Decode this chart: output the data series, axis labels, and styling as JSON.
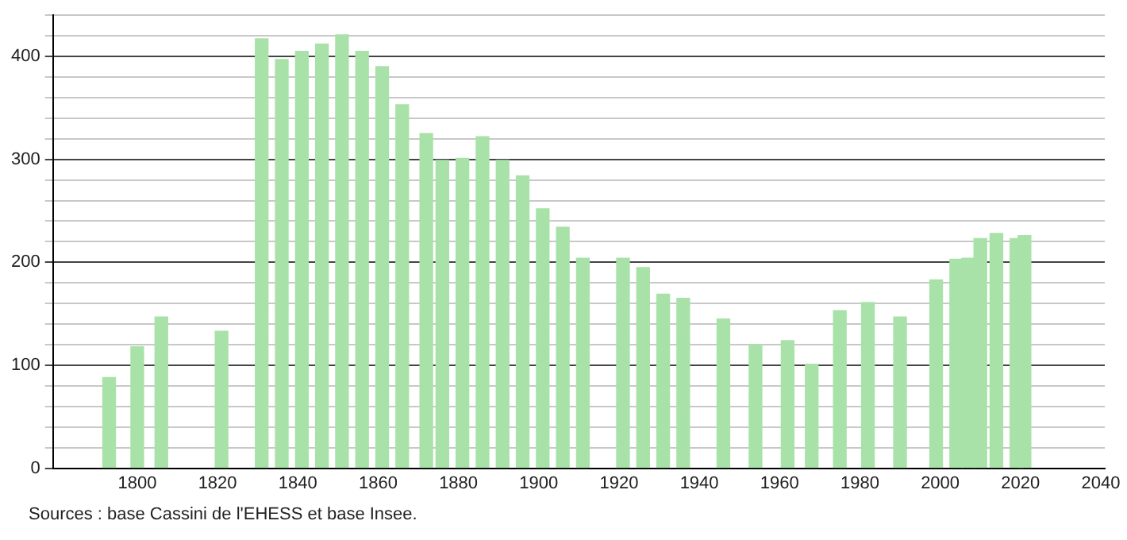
{
  "chart_data": {
    "type": "bar",
    "x": [
      1793,
      1800,
      1806,
      1821,
      1831,
      1836,
      1841,
      1846,
      1851,
      1856,
      1861,
      1866,
      1872,
      1876,
      1881,
      1886,
      1891,
      1896,
      1901,
      1906,
      1911,
      1921,
      1926,
      1931,
      1936,
      1946,
      1954,
      1962,
      1968,
      1975,
      1982,
      1990,
      1999,
      2004,
      2007,
      2010,
      2014,
      2019,
      2021
    ],
    "values": [
      88,
      118,
      147,
      133,
      417,
      397,
      405,
      412,
      421,
      405,
      390,
      353,
      325,
      299,
      301,
      322,
      299,
      284,
      252,
      234,
      204,
      204,
      195,
      169,
      165,
      145,
      120,
      124,
      101,
      153,
      161,
      147,
      183,
      203,
      204,
      223,
      228,
      223,
      226
    ],
    "color": "#a9e2a9",
    "xlim": [
      1779,
      2041
    ],
    "xticks": [
      1800,
      1820,
      1840,
      1860,
      1880,
      1900,
      1920,
      1940,
      1960,
      1980,
      2000,
      2020,
      2040
    ],
    "ylim": [
      0,
      440
    ],
    "yticks": [
      0,
      {
        "value": 20,
        "label": null
      },
      {
        "value": 40,
        "label": null
      },
      {
        "value": 60,
        "label": null
      },
      {
        "value": 80,
        "label": null
      },
      100,
      {
        "value": 120,
        "label": null
      },
      {
        "value": 140,
        "label": null
      },
      {
        "value": 160,
        "label": null
      },
      {
        "value": 180,
        "label": null
      },
      200,
      {
        "value": 220,
        "label": null
      },
      {
        "value": 240,
        "label": null
      },
      {
        "value": 260,
        "label": null
      },
      {
        "value": 280,
        "label": null
      },
      300,
      {
        "value": 320,
        "label": null
      },
      {
        "value": 340,
        "label": null
      },
      {
        "value": 360,
        "label": null
      },
      {
        "value": 380,
        "label": null
      },
      400,
      {
        "value": 420,
        "label": null
      },
      {
        "value": 440,
        "label": null
      }
    ],
    "grid": "y",
    "legend": false,
    "annotations": [
      "Sources : base Cassini de l'EHESS et base Insee."
    ]
  }
}
